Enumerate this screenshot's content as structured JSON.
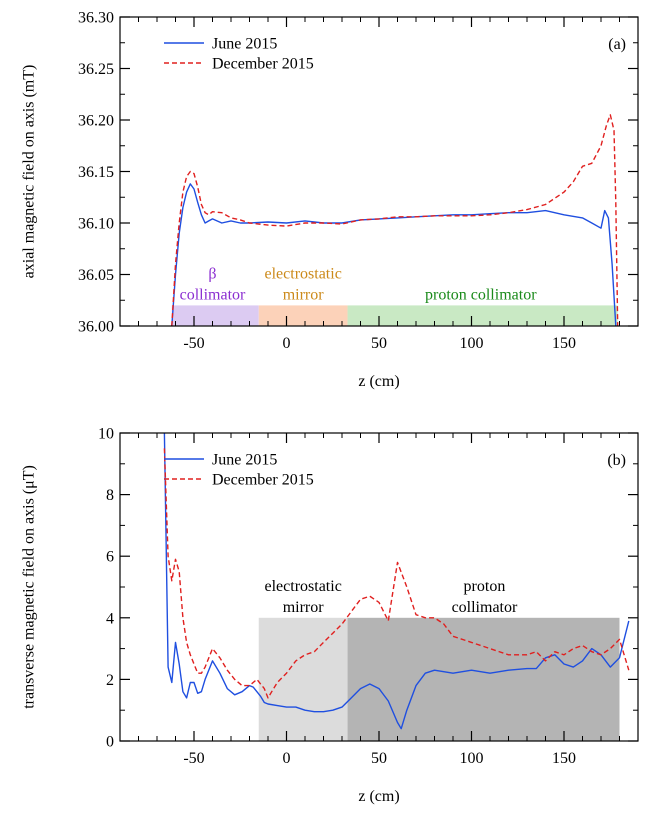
{
  "chart_data": [
    {
      "type": "line",
      "panel_label": "(a)",
      "xlabel": "z (cm)",
      "ylabel": "axial magnetic field on axis (mT)",
      "xlim": [
        -90,
        190
      ],
      "ylim": [
        36.0,
        36.3
      ],
      "x_ticks": [
        -50,
        0,
        50,
        100,
        150
      ],
      "y_ticks": [
        36.0,
        36.05,
        36.1,
        36.15,
        36.2,
        36.25,
        36.3
      ],
      "legend_position": "top-left",
      "regions": [
        {
          "x0": -62,
          "x1": -15,
          "y0": 36.0,
          "y1": 36.02,
          "color": "#dccbf2",
          "label_lines": [
            "β",
            "collimator"
          ],
          "label_color": "#8b2fd1",
          "label_x": -40
        },
        {
          "x0": -15,
          "x1": 33,
          "y0": 36.0,
          "y1": 36.02,
          "color": "#fcd2b9",
          "label_lines": [
            "electrostatic",
            "mirror"
          ],
          "label_color": "#cc8a1a",
          "label_x": 9
        },
        {
          "x0": 33,
          "x1": 179,
          "y0": 36.0,
          "y1": 36.02,
          "color": "#c9e9c4",
          "label_lines": [
            "proton collimator"
          ],
          "label_color": "#1a8a1a",
          "label_x": 105
        }
      ],
      "series": [
        {
          "name": "June 2015",
          "color": "#1f4fe0",
          "dash": "solid",
          "x": [
            -62,
            -60,
            -58,
            -56,
            -54,
            -52,
            -50,
            -48,
            -46,
            -44,
            -42,
            -40,
            -35,
            -30,
            -25,
            -20,
            -10,
            0,
            10,
            20,
            30,
            40,
            50,
            60,
            70,
            80,
            90,
            100,
            110,
            120,
            130,
            140,
            150,
            160,
            165,
            170,
            172,
            174,
            176,
            178
          ],
          "y": [
            36.0,
            36.05,
            36.09,
            36.115,
            36.13,
            36.138,
            36.133,
            36.12,
            36.108,
            36.1,
            36.102,
            36.104,
            36.1,
            36.102,
            36.1,
            36.1,
            36.101,
            36.1,
            36.102,
            36.1,
            36.1,
            36.103,
            36.104,
            36.105,
            36.106,
            36.107,
            36.108,
            36.108,
            36.109,
            36.11,
            36.11,
            36.112,
            36.108,
            36.105,
            36.1,
            36.095,
            36.112,
            36.105,
            36.06,
            36.0
          ]
        },
        {
          "name": "December 2015",
          "color": "#e0201f",
          "dash": "dashed",
          "x": [
            -62,
            -60,
            -58,
            -56,
            -54,
            -52,
            -50,
            -48,
            -46,
            -44,
            -42,
            -40,
            -35,
            -30,
            -25,
            -20,
            -10,
            0,
            10,
            20,
            30,
            40,
            50,
            60,
            70,
            80,
            90,
            100,
            110,
            120,
            130,
            140,
            150,
            155,
            160,
            165,
            170,
            173,
            175,
            177,
            178,
            179
          ],
          "y": [
            36.0,
            36.06,
            36.1,
            36.13,
            36.145,
            36.15,
            36.148,
            36.135,
            36.118,
            36.11,
            36.108,
            36.111,
            36.11,
            36.105,
            36.103,
            36.1,
            36.098,
            36.097,
            36.1,
            36.1,
            36.099,
            36.103,
            36.104,
            36.106,
            36.106,
            36.107,
            36.107,
            36.107,
            36.108,
            36.11,
            36.113,
            36.118,
            36.13,
            36.14,
            36.155,
            36.158,
            36.175,
            36.195,
            36.205,
            36.19,
            36.12,
            36.0
          ]
        }
      ]
    },
    {
      "type": "line",
      "panel_label": "(b)",
      "xlabel": "z (cm)",
      "ylabel": "transverse magnetic field on axis (μT)",
      "xlim": [
        -90,
        190
      ],
      "ylim": [
        0,
        10
      ],
      "x_ticks": [
        -50,
        0,
        50,
        100,
        150
      ],
      "y_ticks": [
        0,
        2,
        4,
        6,
        8,
        10
      ],
      "legend_position": "top-left",
      "regions": [
        {
          "x0": -15,
          "x1": 33,
          "y0": 0,
          "y1": 4,
          "color": "#dcdcdc",
          "label_lines": [
            "electrostatic",
            "mirror"
          ],
          "label_color": "#000000",
          "label_x": 9
        },
        {
          "x0": 33,
          "x1": 180,
          "y0": 0,
          "y1": 4,
          "color": "#b4b4b4",
          "label_lines": [
            "proton",
            "collimator"
          ],
          "label_color": "#000000",
          "label_x": 107
        }
      ],
      "series": [
        {
          "name": "June 2015",
          "color": "#1f4fe0",
          "dash": "solid",
          "x": [
            -66,
            -64,
            -62,
            -60,
            -58,
            -56,
            -54,
            -52,
            -50,
            -48,
            -46,
            -44,
            -40,
            -36,
            -32,
            -28,
            -24,
            -20,
            -18,
            -16,
            -14,
            -12,
            -10,
            -5,
            0,
            5,
            10,
            15,
            20,
            25,
            30,
            35,
            40,
            45,
            50,
            55,
            60,
            62,
            65,
            70,
            75,
            80,
            90,
            100,
            110,
            120,
            130,
            135,
            140,
            145,
            150,
            155,
            160,
            165,
            170,
            175,
            180,
            185
          ],
          "y": [
            10,
            2.4,
            1.9,
            3.2,
            2.5,
            1.6,
            1.4,
            1.9,
            1.9,
            1.55,
            1.6,
            2.0,
            2.6,
            2.2,
            1.7,
            1.5,
            1.6,
            1.8,
            1.75,
            1.6,
            1.45,
            1.25,
            1.2,
            1.15,
            1.1,
            1.1,
            1.0,
            0.95,
            0.95,
            1.0,
            1.1,
            1.4,
            1.7,
            1.85,
            1.7,
            1.3,
            0.6,
            0.4,
            1.0,
            1.8,
            2.2,
            2.3,
            2.2,
            2.3,
            2.2,
            2.3,
            2.35,
            2.35,
            2.7,
            2.8,
            2.5,
            2.4,
            2.6,
            3.0,
            2.8,
            2.4,
            2.7,
            3.9
          ]
        },
        {
          "name": "December 2015",
          "color": "#e0201f",
          "dash": "dashed",
          "x": [
            -66,
            -64,
            -62,
            -60,
            -58,
            -56,
            -54,
            -52,
            -50,
            -48,
            -46,
            -44,
            -40,
            -36,
            -32,
            -28,
            -24,
            -20,
            -16,
            -12,
            -10,
            -8,
            -5,
            0,
            5,
            10,
            15,
            20,
            25,
            30,
            35,
            40,
            45,
            50,
            55,
            60,
            65,
            70,
            75,
            80,
            85,
            90,
            100,
            110,
            120,
            130,
            135,
            140,
            145,
            150,
            155,
            160,
            165,
            170,
            175,
            180,
            185
          ],
          "y": [
            9.5,
            6.0,
            5.2,
            5.9,
            5.5,
            4.0,
            3.2,
            2.8,
            2.5,
            2.2,
            2.2,
            2.4,
            3.0,
            2.7,
            2.3,
            2.0,
            1.8,
            1.8,
            2.0,
            1.7,
            1.4,
            1.6,
            1.9,
            2.2,
            2.6,
            2.8,
            2.9,
            3.2,
            3.5,
            3.8,
            4.2,
            4.6,
            4.7,
            4.5,
            3.9,
            5.8,
            5.0,
            4.1,
            4.0,
            4.0,
            3.8,
            3.4,
            3.2,
            3.0,
            2.8,
            2.8,
            2.9,
            2.6,
            2.9,
            2.8,
            3.0,
            3.1,
            2.9,
            2.8,
            3.0,
            3.3,
            2.3
          ]
        }
      ]
    }
  ]
}
